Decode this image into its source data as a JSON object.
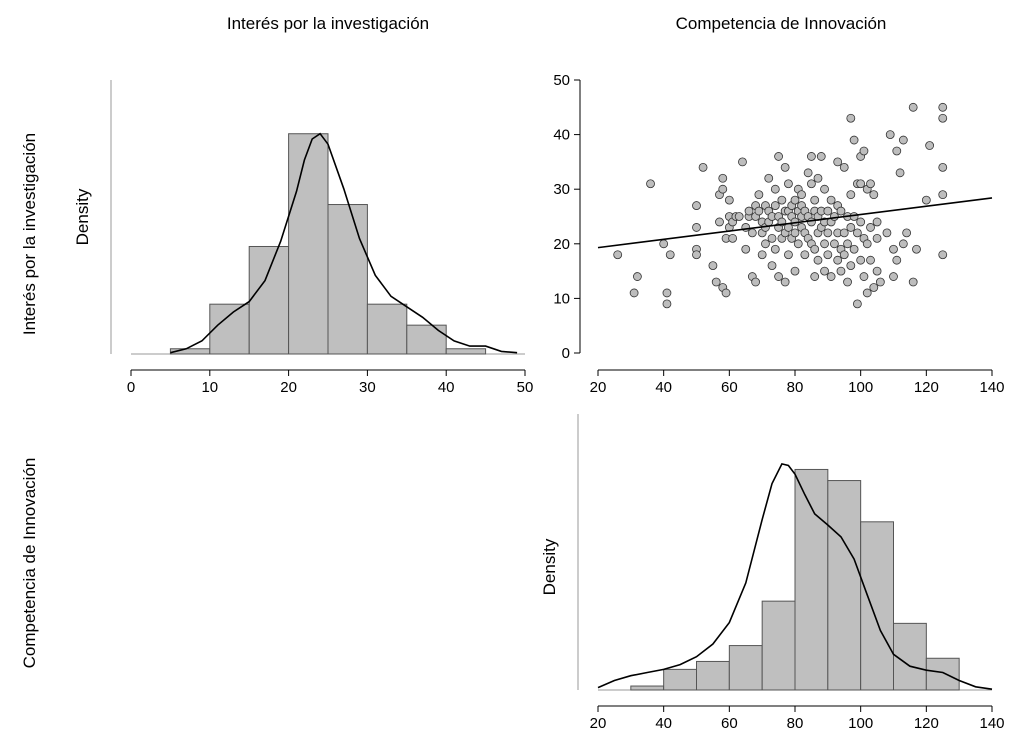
{
  "column_titles": [
    "Interés por la investigación",
    "Competencia de Innovación"
  ],
  "row_titles": [
    "Interés por la investigación",
    "Competencia de Innovación"
  ],
  "colors": {
    "bar_fill": "#bfbfbf",
    "bar_stroke": "#555555",
    "point_fill": "#bdbdbd",
    "line": "#000000"
  },
  "chart_data": [
    {
      "type": "bar",
      "title": "",
      "ylabel": "Density",
      "xlabel": "",
      "xlim": [
        0,
        50
      ],
      "xticks": [
        0,
        10,
        20,
        30,
        40,
        50
      ],
      "bins": [
        [
          5,
          10
        ],
        [
          10,
          15
        ],
        [
          15,
          20
        ],
        [
          20,
          25
        ],
        [
          25,
          30
        ],
        [
          30,
          35
        ],
        [
          35,
          40
        ],
        [
          40,
          45
        ]
      ],
      "values": [
        0.002,
        0.019,
        0.041,
        0.084,
        0.057,
        0.019,
        0.011,
        0.002
      ],
      "ylim": [
        0,
        0.09
      ],
      "density_curve": {
        "x": [
          5,
          7,
          9,
          11,
          13,
          15,
          17,
          19,
          21,
          22,
          23,
          24,
          25,
          27,
          29,
          31,
          33,
          35,
          37,
          39,
          41,
          43,
          45,
          47,
          49
        ],
        "y": [
          0.0005,
          0.002,
          0.005,
          0.011,
          0.016,
          0.02,
          0.028,
          0.043,
          0.062,
          0.074,
          0.082,
          0.084,
          0.08,
          0.063,
          0.044,
          0.03,
          0.022,
          0.018,
          0.014,
          0.009,
          0.005,
          0.003,
          0.003,
          0.001,
          0.0005
        ]
      },
      "grid": false
    },
    {
      "type": "scatter",
      "title": "",
      "xlabel": "",
      "ylabel": "",
      "xlim": [
        20,
        140
      ],
      "ylim": [
        0,
        50
      ],
      "xticks": [
        20,
        40,
        60,
        80,
        100,
        120,
        140
      ],
      "yticks": [
        0,
        10,
        20,
        30,
        40,
        50
      ],
      "points": [
        [
          26,
          18
        ],
        [
          31,
          11
        ],
        [
          32,
          14
        ],
        [
          36,
          31
        ],
        [
          40,
          20
        ],
        [
          41,
          9
        ],
        [
          41,
          11
        ],
        [
          42,
          18
        ],
        [
          50,
          27
        ],
        [
          50,
          23
        ],
        [
          50,
          19
        ],
        [
          50,
          18
        ],
        [
          52,
          34
        ],
        [
          55,
          16
        ],
        [
          56,
          13
        ],
        [
          57,
          29
        ],
        [
          57,
          24
        ],
        [
          58,
          30
        ],
        [
          58,
          32
        ],
        [
          58,
          12
        ],
        [
          59,
          11
        ],
        [
          59,
          21
        ],
        [
          60,
          23
        ],
        [
          60,
          28
        ],
        [
          60,
          25
        ],
        [
          61,
          24
        ],
        [
          61,
          21
        ],
        [
          62,
          25
        ],
        [
          63,
          25
        ],
        [
          64,
          35
        ],
        [
          65,
          23
        ],
        [
          65,
          19
        ],
        [
          66,
          25
        ],
        [
          66,
          26
        ],
        [
          67,
          14
        ],
        [
          67,
          22
        ],
        [
          68,
          27
        ],
        [
          68,
          25
        ],
        [
          68,
          13
        ],
        [
          69,
          29
        ],
        [
          69,
          26
        ],
        [
          70,
          24
        ],
        [
          70,
          22
        ],
        [
          70,
          18
        ],
        [
          71,
          27
        ],
        [
          71,
          23
        ],
        [
          71,
          20
        ],
        [
          72,
          26
        ],
        [
          72,
          24
        ],
        [
          72,
          32
        ],
        [
          73,
          16
        ],
        [
          73,
          25
        ],
        [
          73,
          21
        ],
        [
          74,
          30
        ],
        [
          74,
          27
        ],
        [
          74,
          19
        ],
        [
          75,
          36
        ],
        [
          75,
          25
        ],
        [
          75,
          23
        ],
        [
          75,
          14
        ],
        [
          76,
          28
        ],
        [
          76,
          24
        ],
        [
          76,
          21
        ],
        [
          77,
          34
        ],
        [
          77,
          26
        ],
        [
          77,
          22
        ],
        [
          77,
          13
        ],
        [
          78,
          31
        ],
        [
          78,
          26
        ],
        [
          78,
          23
        ],
        [
          78,
          18
        ],
        [
          79,
          25
        ],
        [
          79,
          27
        ],
        [
          79,
          21
        ],
        [
          80,
          22
        ],
        [
          80,
          28
        ],
        [
          80,
          24
        ],
        [
          80,
          15
        ],
        [
          81,
          26
        ],
        [
          81,
          30
        ],
        [
          81,
          20
        ],
        [
          82,
          27
        ],
        [
          82,
          23
        ],
        [
          82,
          29
        ],
        [
          82,
          25
        ],
        [
          83,
          22
        ],
        [
          83,
          18
        ],
        [
          83,
          26
        ],
        [
          84,
          33
        ],
        [
          84,
          25
        ],
        [
          84,
          21
        ],
        [
          85,
          36
        ],
        [
          85,
          24
        ],
        [
          85,
          20
        ],
        [
          85,
          31
        ],
        [
          86,
          28
        ],
        [
          86,
          26
        ],
        [
          86,
          19
        ],
        [
          86,
          14
        ],
        [
          87,
          32
        ],
        [
          87,
          25
        ],
        [
          87,
          22
        ],
        [
          87,
          17
        ],
        [
          88,
          36
        ],
        [
          88,
          26
        ],
        [
          88,
          23
        ],
        [
          89,
          30
        ],
        [
          89,
          24
        ],
        [
          89,
          20
        ],
        [
          89,
          15
        ],
        [
          90,
          26
        ],
        [
          90,
          22
        ],
        [
          90,
          18
        ],
        [
          91,
          28
        ],
        [
          91,
          24
        ],
        [
          91,
          14
        ],
        [
          92,
          25
        ],
        [
          92,
          20
        ],
        [
          93,
          35
        ],
        [
          93,
          27
        ],
        [
          93,
          22
        ],
        [
          93,
          17
        ],
        [
          94,
          26
        ],
        [
          94,
          19
        ],
        [
          94,
          15
        ],
        [
          95,
          34
        ],
        [
          95,
          22
        ],
        [
          95,
          18
        ],
        [
          96,
          25
        ],
        [
          96,
          20
        ],
        [
          96,
          13
        ],
        [
          97,
          43
        ],
        [
          97,
          29
        ],
        [
          97,
          23
        ],
        [
          97,
          16
        ],
        [
          98,
          39
        ],
        [
          98,
          25
        ],
        [
          98,
          19
        ],
        [
          99,
          31
        ],
        [
          99,
          22
        ],
        [
          99,
          9
        ],
        [
          100,
          36
        ],
        [
          100,
          24
        ],
        [
          100,
          17
        ],
        [
          100,
          31
        ],
        [
          101,
          37
        ],
        [
          101,
          21
        ],
        [
          101,
          14
        ],
        [
          102,
          30
        ],
        [
          102,
          20
        ],
        [
          102,
          11
        ],
        [
          103,
          31
        ],
        [
          103,
          23
        ],
        [
          103,
          17
        ],
        [
          104,
          29
        ],
        [
          104,
          12
        ],
        [
          105,
          24
        ],
        [
          105,
          21
        ],
        [
          105,
          15
        ],
        [
          106,
          13
        ],
        [
          108,
          22
        ],
        [
          109,
          40
        ],
        [
          110,
          19
        ],
        [
          110,
          14
        ],
        [
          111,
          37
        ],
        [
          111,
          17
        ],
        [
          112,
          33
        ],
        [
          113,
          39
        ],
        [
          113,
          20
        ],
        [
          114,
          22
        ],
        [
          116,
          45
        ],
        [
          116,
          13
        ],
        [
          117,
          19
        ],
        [
          120,
          28
        ],
        [
          121,
          38
        ],
        [
          125,
          45
        ],
        [
          125,
          43
        ],
        [
          125,
          34
        ],
        [
          125,
          29
        ],
        [
          125,
          18
        ]
      ],
      "regression": {
        "x": [
          20,
          140
        ],
        "y": [
          19.3,
          28.4
        ]
      },
      "grid": false
    },
    {
      "type": "bar",
      "title": "",
      "ylabel": "Density",
      "xlabel": "",
      "xlim": [
        20,
        140
      ],
      "xticks": [
        20,
        40,
        60,
        80,
        100,
        120,
        140
      ],
      "bins": [
        [
          30,
          40
        ],
        [
          40,
          50
        ],
        [
          50,
          60
        ],
        [
          60,
          70
        ],
        [
          70,
          80
        ],
        [
          80,
          90
        ],
        [
          90,
          100
        ],
        [
          100,
          110
        ],
        [
          110,
          120
        ],
        [
          120,
          130
        ]
      ],
      "values": [
        0.0005,
        0.0026,
        0.0036,
        0.0056,
        0.0112,
        0.0278,
        0.0264,
        0.0212,
        0.0084,
        0.004
      ],
      "ylim": [
        0,
        0.03
      ],
      "density_curve": {
        "x": [
          20,
          25,
          30,
          35,
          40,
          45,
          50,
          55,
          60,
          65,
          70,
          73,
          76,
          78,
          80,
          83,
          86,
          90,
          94,
          98,
          102,
          106,
          110,
          115,
          120,
          125,
          130,
          135,
          140
        ],
        "y": [
          0.0003,
          0.0012,
          0.0018,
          0.0022,
          0.0026,
          0.0032,
          0.0042,
          0.0058,
          0.0085,
          0.0135,
          0.0215,
          0.026,
          0.0285,
          0.0283,
          0.0272,
          0.0246,
          0.0222,
          0.0208,
          0.0193,
          0.0165,
          0.012,
          0.0075,
          0.0045,
          0.003,
          0.0025,
          0.0022,
          0.0012,
          0.0004,
          0.0001
        ]
      },
      "grid": false
    }
  ]
}
